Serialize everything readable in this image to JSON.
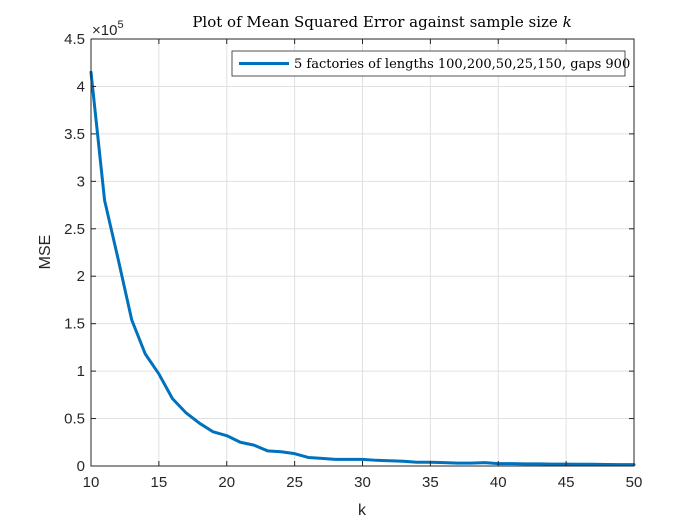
{
  "chart_data": {
    "type": "line",
    "title": "Plot of Mean Squared Error against sample size ",
    "title_var": "k",
    "xlabel": "k",
    "ylabel": "MSE",
    "xlim": [
      10,
      50
    ],
    "ylim": [
      0,
      4.5
    ],
    "y_scale_note": "×10",
    "y_scale_exp": "5",
    "xticks": [
      "10",
      "15",
      "20",
      "25",
      "30",
      "35",
      "40",
      "45",
      "50"
    ],
    "yticks": [
      "0",
      "0.5",
      "1",
      "1.5",
      "2",
      "2.5",
      "3",
      "3.5",
      "4",
      "4.5"
    ],
    "grid": true,
    "legend_position": "top-right",
    "series": [
      {
        "name": "5 factories of lengths 100,200,50,25,150, gaps 900",
        "color": "#0072BD",
        "x": [
          10,
          11,
          12,
          13,
          14,
          15,
          16,
          17,
          18,
          19,
          20,
          21,
          22,
          23,
          24,
          25,
          26,
          27,
          28,
          29,
          30,
          31,
          32,
          33,
          34,
          35,
          36,
          37,
          38,
          39,
          40,
          41,
          42,
          43,
          44,
          45,
          46,
          47,
          48,
          49,
          50
        ],
        "y": [
          4.15,
          2.8,
          2.18,
          1.54,
          1.18,
          0.97,
          0.71,
          0.56,
          0.45,
          0.36,
          0.32,
          0.25,
          0.22,
          0.16,
          0.15,
          0.13,
          0.09,
          0.08,
          0.07,
          0.07,
          0.07,
          0.06,
          0.055,
          0.05,
          0.04,
          0.04,
          0.035,
          0.03,
          0.03,
          0.035,
          0.025,
          0.025,
          0.022,
          0.022,
          0.02,
          0.02,
          0.018,
          0.018,
          0.016,
          0.015,
          0.015
        ]
      }
    ]
  }
}
